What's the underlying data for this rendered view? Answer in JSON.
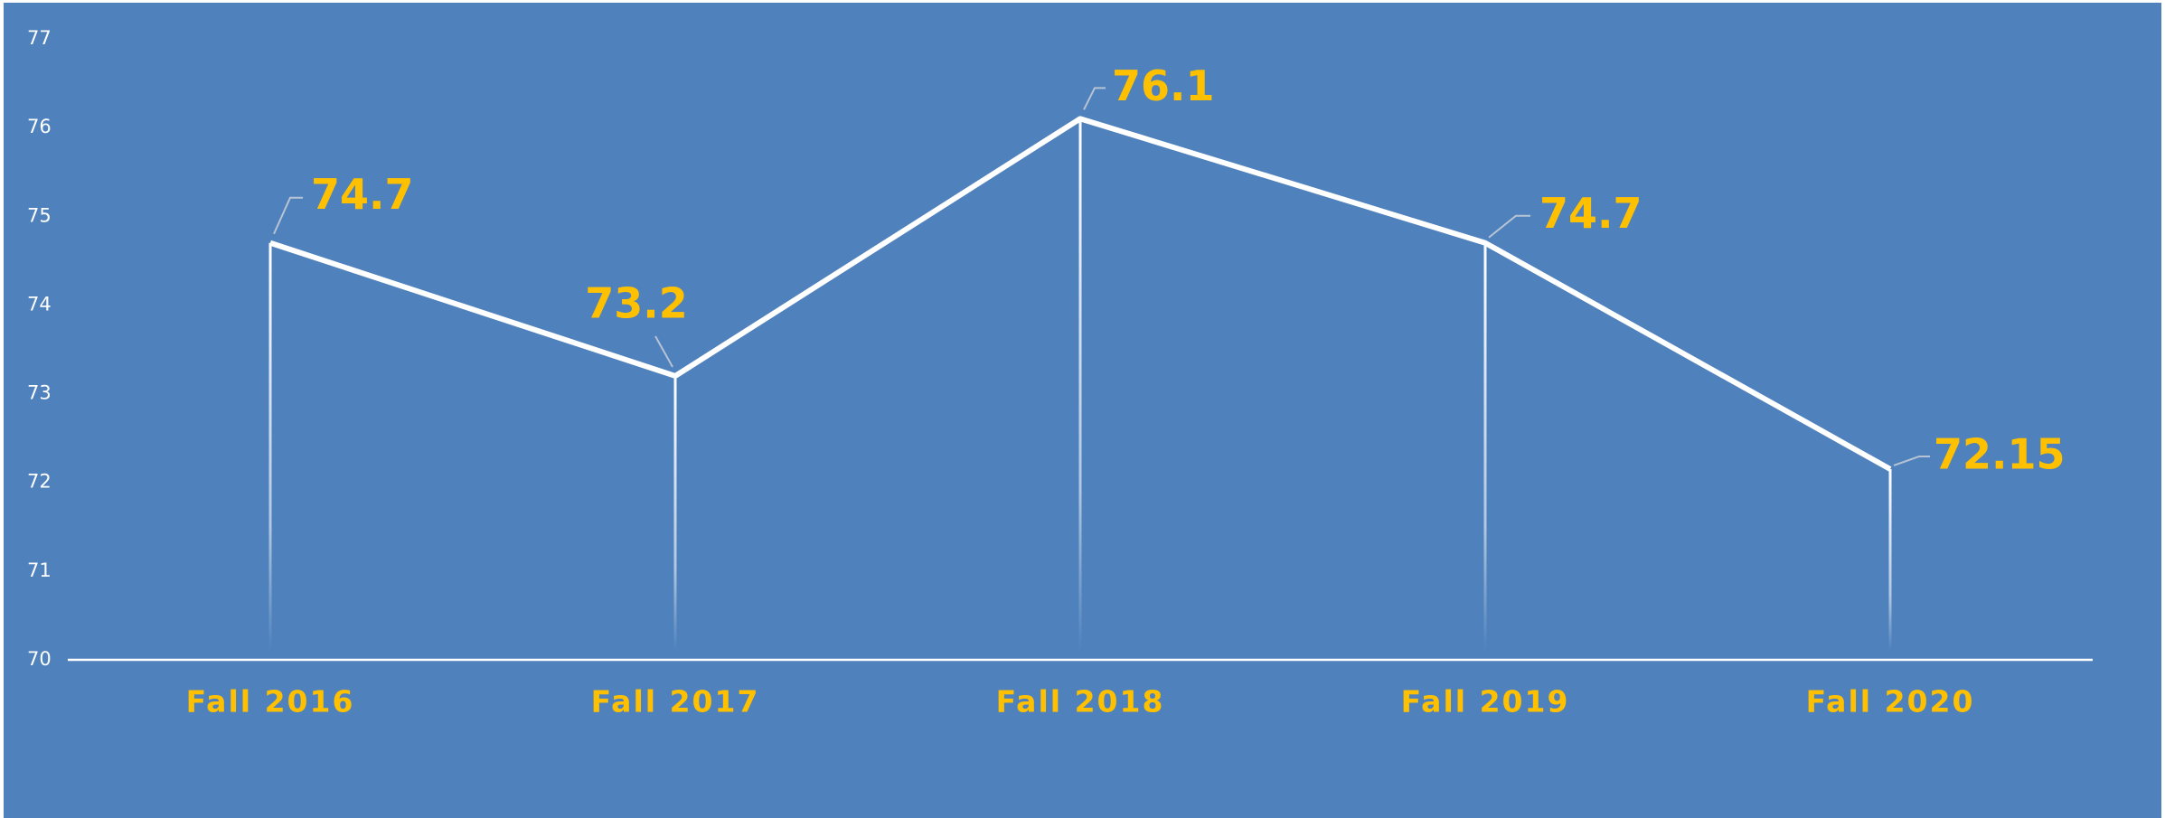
{
  "chart_data": {
    "type": "line",
    "categories": [
      "Fall 2016",
      "Fall 2017",
      "Fall 2018",
      "Fall 2019",
      "Fall 2020"
    ],
    "series": [
      {
        "color": "#ffffff",
        "values": [
          74.7,
          73.2,
          76.1,
          74.7,
          72.15
        ]
      }
    ],
    "label_color": "#ffc000",
    "ylim": [
      70,
      77
    ],
    "yticks": [
      70,
      71,
      72,
      73,
      74,
      75,
      76,
      77
    ],
    "grid": false
  }
}
